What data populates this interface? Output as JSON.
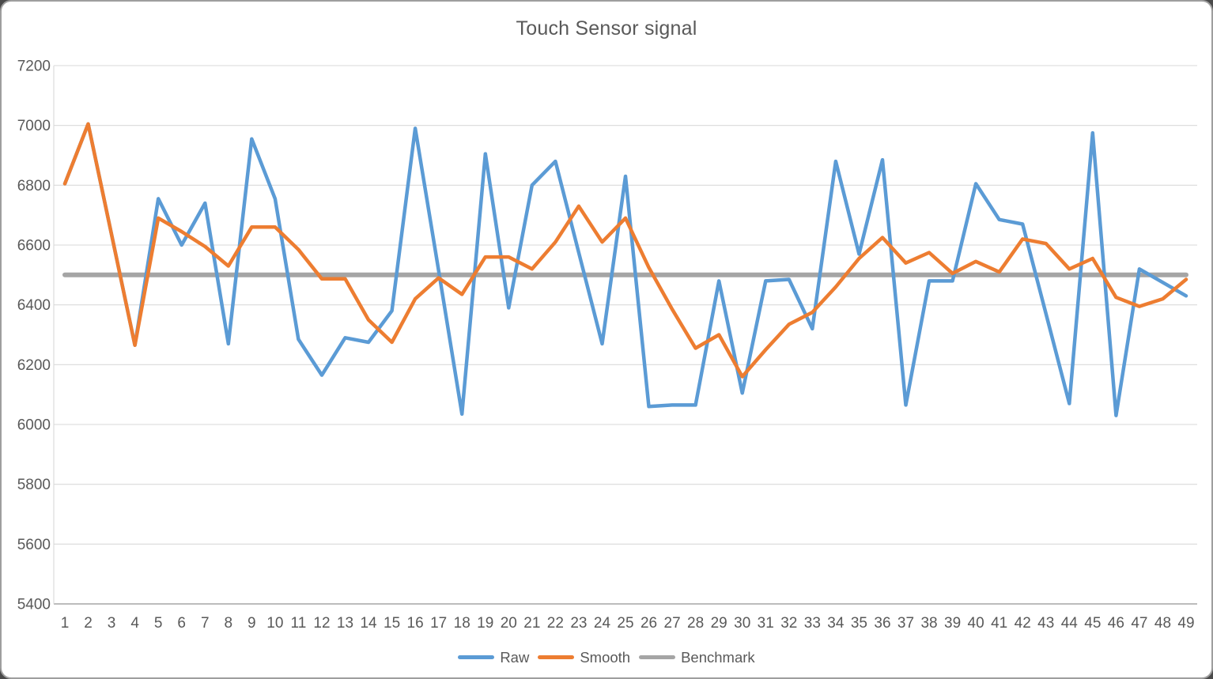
{
  "window": {
    "background": "#FFFFFF",
    "border_color": "#9E9E9E"
  },
  "chart_data": {
    "type": "line",
    "title": "Touch Sensor signal",
    "x": [
      1,
      2,
      3,
      4,
      5,
      6,
      7,
      8,
      9,
      10,
      11,
      12,
      13,
      14,
      15,
      16,
      17,
      18,
      19,
      20,
      21,
      22,
      23,
      24,
      25,
      26,
      27,
      28,
      29,
      30,
      31,
      32,
      33,
      34,
      35,
      36,
      37,
      38,
      39,
      40,
      41,
      42,
      43,
      44,
      45,
      46,
      47,
      48,
      49
    ],
    "y_ticks": [
      7200,
      7000,
      6800,
      6600,
      6400,
      6200,
      6000,
      5800,
      5600,
      5400
    ],
    "ylim": [
      5400,
      7200
    ],
    "xlabel": "",
    "ylabel": "",
    "grid": "horizontal",
    "legend_position": "bottom",
    "series": [
      {
        "name": "Raw",
        "color": "#5B9BD5",
        "values": [
          6805,
          7005,
          6635,
          6265,
          6755,
          6600,
          6740,
          6270,
          6955,
          6755,
          6285,
          6165,
          6290,
          6275,
          6380,
          6990,
          6515,
          6035,
          6905,
          6390,
          6800,
          6880,
          6575,
          6270,
          6830,
          6060,
          6065,
          6065,
          6480,
          6105,
          6480,
          6485,
          6320,
          6880,
          6570,
          6885,
          6065,
          6480,
          6480,
          6805,
          6685,
          6670,
          6370,
          6070,
          6975,
          6030,
          6520,
          6475,
          6430
        ]
      },
      {
        "name": "Smooth",
        "color": "#ED7D31",
        "values": [
          6805,
          7005,
          6635,
          6265,
          6690,
          6645,
          6595,
          6530,
          6660,
          6660,
          6585,
          6487,
          6487,
          6350,
          6275,
          6420,
          6490,
          6435,
          6560,
          6560,
          6520,
          6610,
          6730,
          6610,
          6690,
          6525,
          6385,
          6255,
          6300,
          6160,
          6250,
          6335,
          6375,
          6460,
          6555,
          6625,
          6540,
          6575,
          6505,
          6545,
          6510,
          6620,
          6605,
          6520,
          6555,
          6425,
          6395,
          6420,
          6485
        ]
      },
      {
        "name": "Benchmark",
        "color": "#A5A5A5",
        "constant": 6500
      }
    ],
    "style": {
      "grid_color": "#D9D9D9",
      "axis_color": "#A6A6A6",
      "text_color": "#595959",
      "title_color": "#595959"
    }
  }
}
